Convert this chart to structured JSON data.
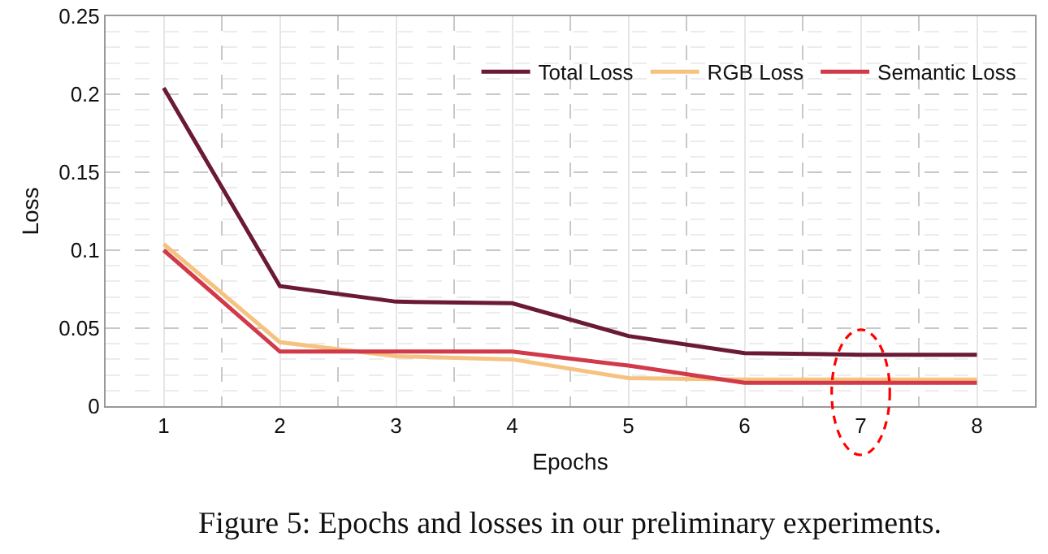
{
  "chart_data": {
    "type": "line",
    "xlabel": "Epochs",
    "ylabel": "Loss",
    "annotations": [
      "Figure 5: Epochs and losses in our preliminary experiments."
    ],
    "x": [
      1,
      2,
      3,
      4,
      5,
      6,
      7,
      8
    ],
    "series": [
      {
        "name": "Total Loss",
        "color": "#6b1a33",
        "values": [
          0.204,
          0.077,
          0.067,
          0.066,
          0.045,
          0.034,
          0.033,
          0.033
        ]
      },
      {
        "name": "RGB Loss",
        "color": "#f5c27f",
        "values": [
          0.104,
          0.041,
          0.032,
          0.03,
          0.018,
          0.017,
          0.017,
          0.017
        ]
      },
      {
        "name": "Semantic Loss",
        "color": "#d03a4a",
        "values": [
          0.1,
          0.035,
          0.035,
          0.035,
          0.026,
          0.015,
          0.015,
          0.015
        ]
      }
    ],
    "xlim": [
      0.5,
      8.5
    ],
    "xticks": [
      1,
      2,
      3,
      4,
      5,
      6,
      7,
      8
    ],
    "ylim": [
      0,
      0.25
    ],
    "yticks": [
      0,
      0.05,
      0.1,
      0.15,
      0.2,
      0.25
    ],
    "grid": true,
    "legend": "top right",
    "marker": "none",
    "line_style": "solid"
  }
}
